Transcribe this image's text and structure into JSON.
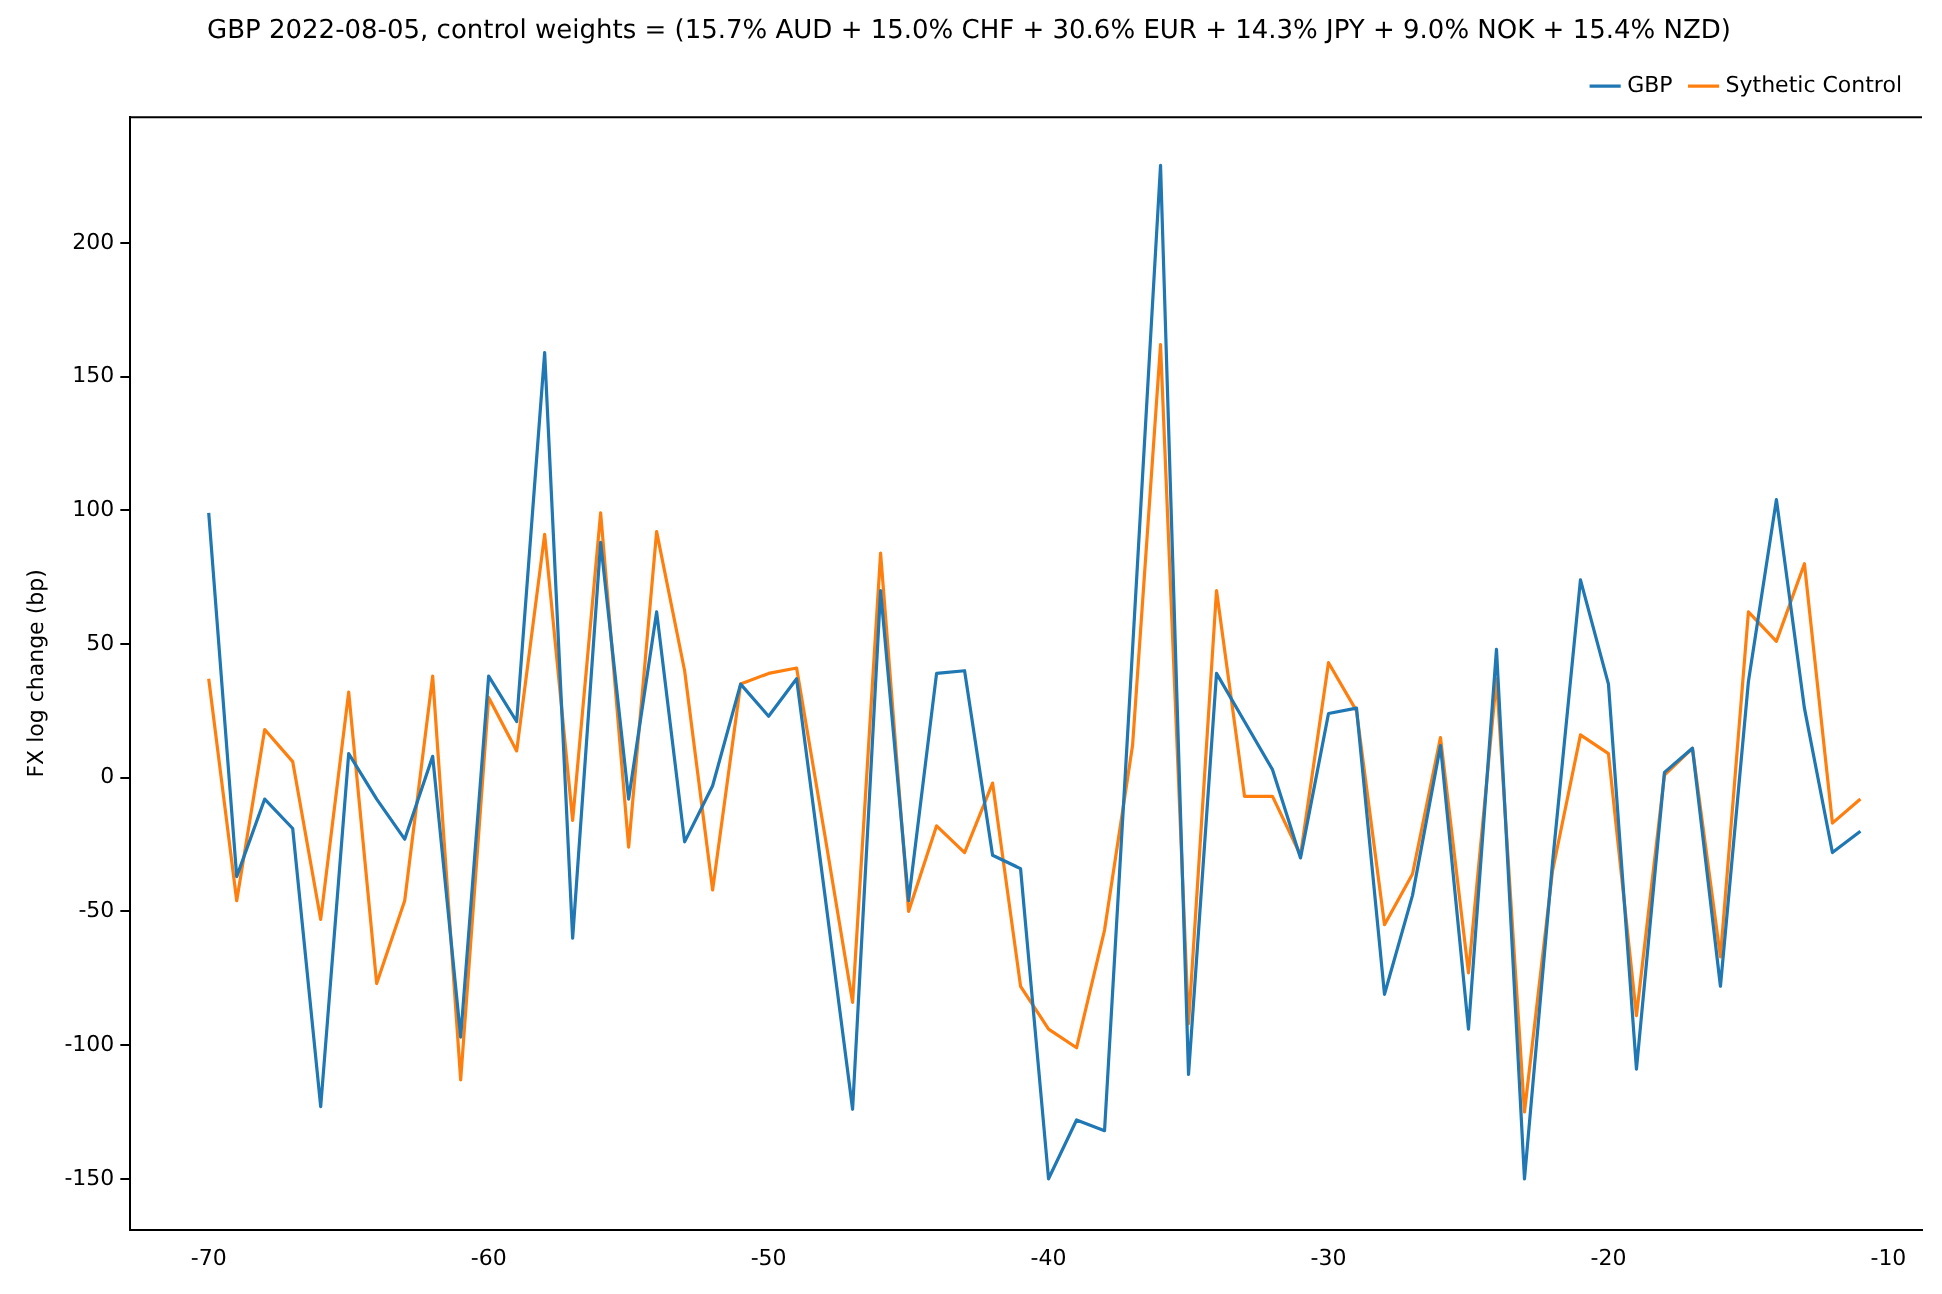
{
  "chart_data": {
    "type": "line",
    "title": "GBP 2022-08-05, control weights = (15.7% AUD + 15.0% CHF + 30.6% EUR + 14.3% JPY + 9.0% NOK + 15.4% NZD)",
    "ylabel": "FX log change (bp)",
    "x": [
      -70,
      -69,
      -68,
      -67,
      -66,
      -65,
      -64,
      -63,
      -62,
      -61,
      -60,
      -59,
      -58,
      -57,
      -56,
      -55,
      -54,
      -53,
      -52,
      -51,
      -50,
      -49,
      -48,
      -47,
      -46,
      -45,
      -44,
      -43,
      -42,
      -41,
      -40,
      -39,
      -38,
      -37,
      -36,
      -35,
      -34,
      -33,
      -32,
      -31,
      -30,
      -29,
      -28,
      -27,
      -26,
      -25,
      -24,
      -23,
      -22,
      -21,
      -20,
      -19,
      -18,
      -17,
      -16,
      -15,
      -14,
      -13,
      -12,
      -11
    ],
    "series": [
      {
        "name": "GBP",
        "color": "#1f77b4",
        "values": [
          99,
          -37,
          -8,
          -19,
          -123,
          9,
          -8,
          -23,
          8,
          -97,
          38,
          21,
          159,
          -60,
          88,
          -8,
          62,
          -24,
          -3,
          35,
          23,
          37,
          -43,
          -124,
          70,
          -46,
          39,
          40,
          -29,
          -34,
          -150,
          -128,
          -132,
          48,
          229,
          -111,
          39,
          21,
          3,
          -30,
          24,
          26,
          -81,
          -44,
          12,
          -94,
          48,
          -150,
          -32,
          74,
          35,
          -109,
          2,
          11,
          -78,
          36,
          104,
          26,
          -28,
          -20
        ]
      },
      {
        "name": "Sythetic Control",
        "color": "#ff7f0e",
        "values": [
          37,
          -46,
          18,
          6,
          -53,
          32,
          -77,
          -46,
          38,
          -113,
          30,
          10,
          91,
          -16,
          99,
          -26,
          92,
          40,
          -42,
          35,
          39,
          41,
          -21,
          -84,
          84,
          -50,
          -18,
          -28,
          -2,
          -78,
          -94,
          -101,
          -57,
          12,
          162,
          -92,
          70,
          -7,
          -7,
          -29,
          43,
          25,
          -55,
          -36,
          15,
          -73,
          37,
          -125,
          -35,
          16,
          9,
          -89,
          1,
          11,
          -67,
          62,
          51,
          80,
          -17,
          -8
        ]
      }
    ],
    "xlim": [
      -72.8,
      -8.8
    ],
    "ylim": [
      -169,
      247
    ],
    "xticks": [
      -70,
      -60,
      -50,
      -40,
      -30,
      -20,
      -10
    ],
    "yticks": [
      -150,
      -100,
      -50,
      0,
      50,
      100,
      150,
      200
    ],
    "grid": false,
    "legend": "top right"
  }
}
